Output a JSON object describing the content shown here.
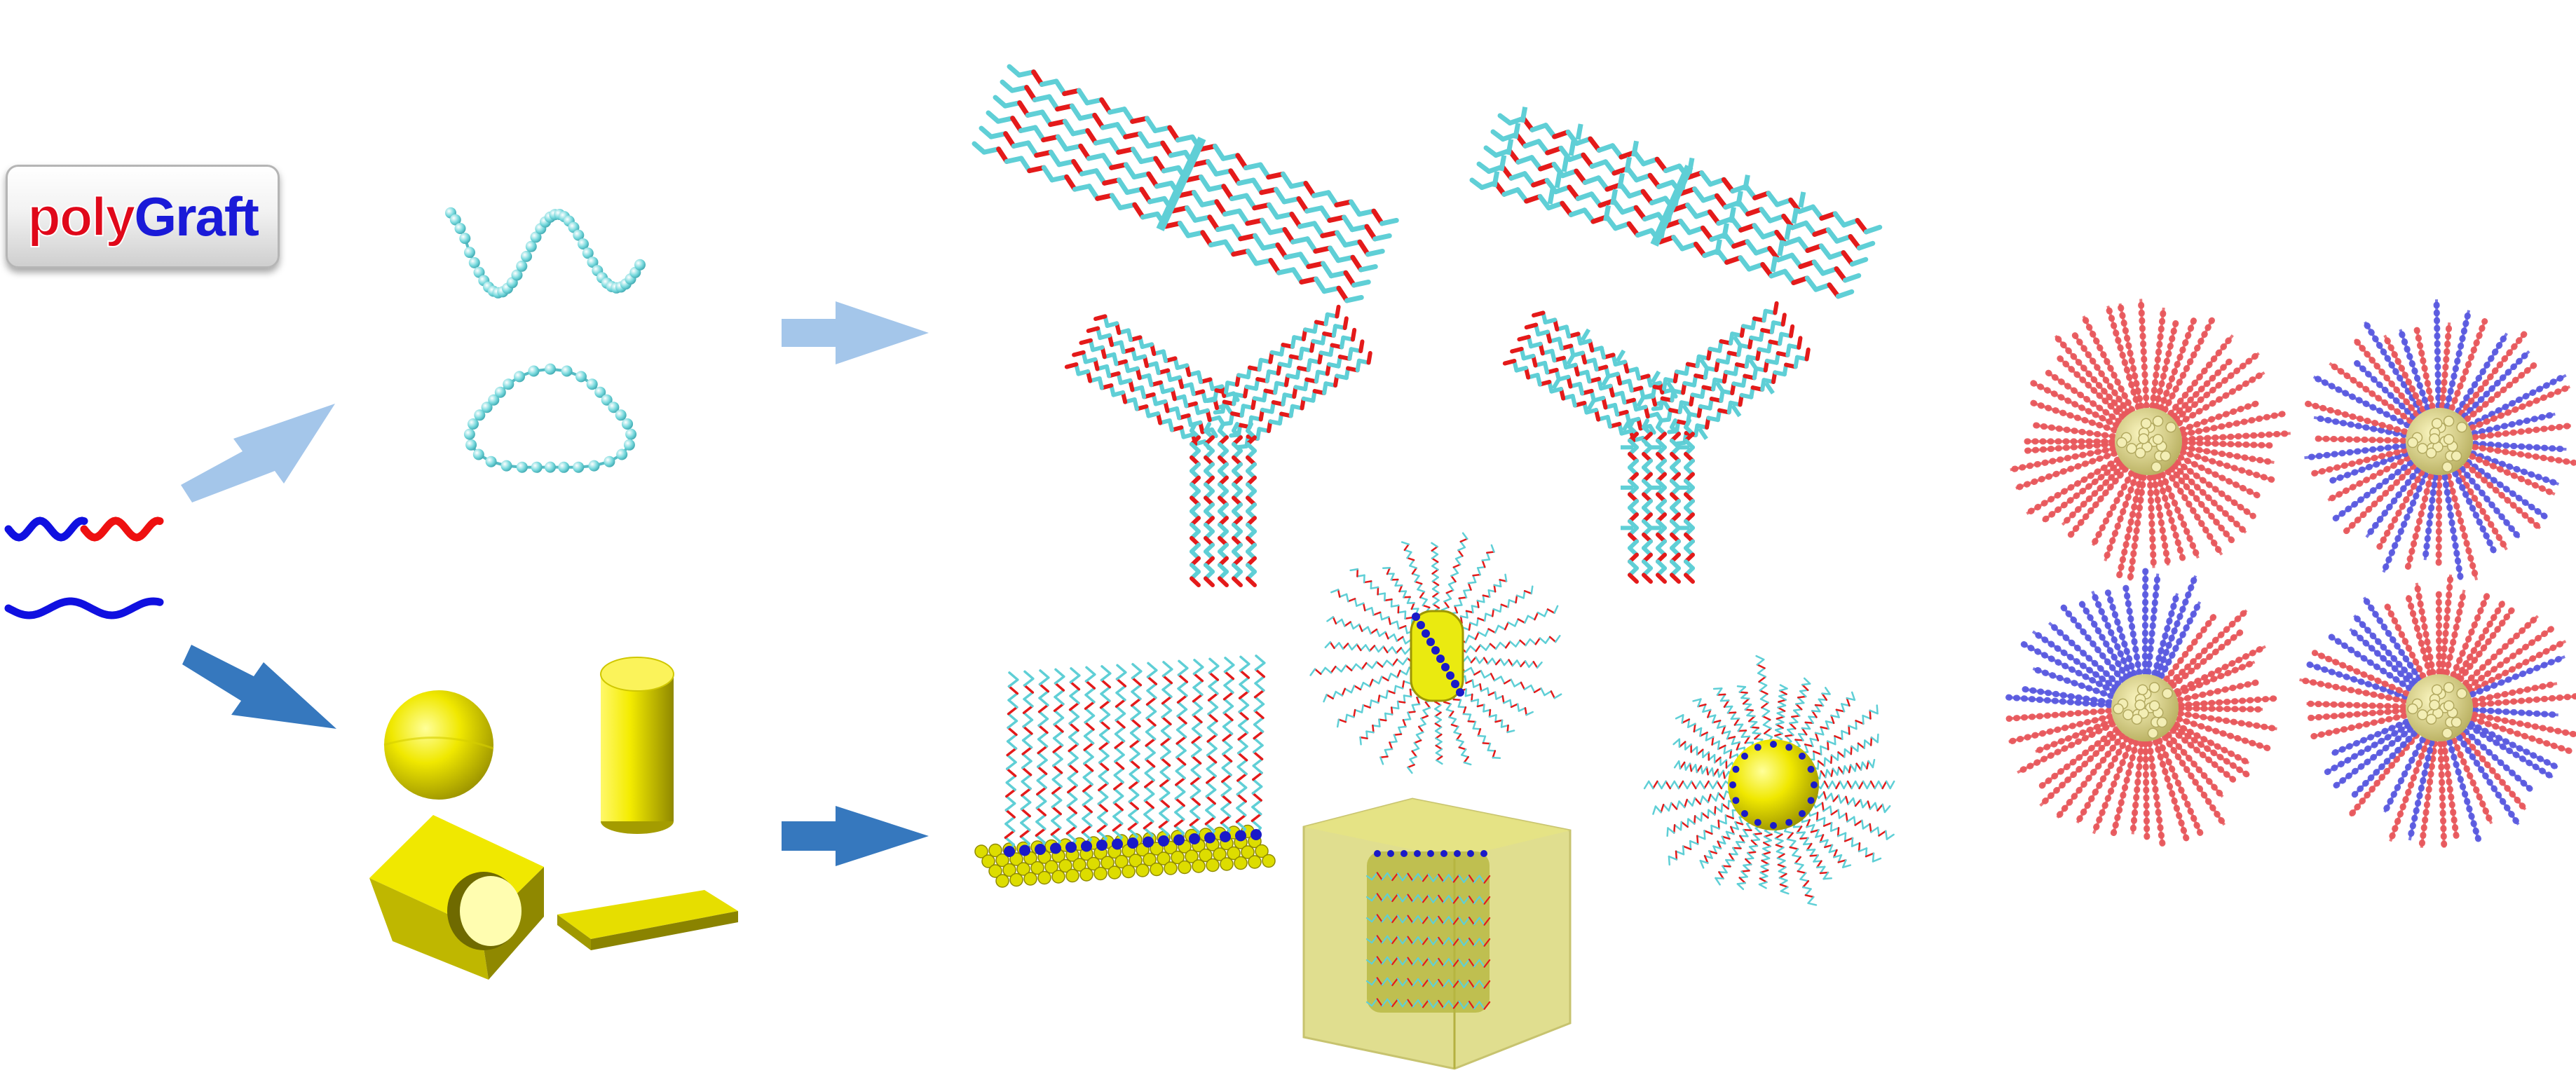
{
  "logo": {
    "part1": "poly",
    "part2": "Graft",
    "colors": {
      "poly": "#e0081a",
      "graft": "#1a1ad8"
    }
  },
  "colors": {
    "arrow_light": "#a4c6ea",
    "arrow_dark": "#3678be",
    "carbon": "#5fcfd6",
    "oxygen": "#e41a1a",
    "block_red": "#e8585c",
    "block_blue": "#5a5ae0",
    "nanoparticle_gold": "#e9e070",
    "solid_yellow": "#f2ec00",
    "surface_atom": "#dddd00",
    "anchor_blue": "#1a1ac8"
  },
  "panels": {
    "input_chains": {
      "icons": [
        "diblock-chain-icon",
        "homopolymer-chain-icon"
      ]
    },
    "single_chains": {
      "icons": [
        "linear-chain-icon",
        "ring-chain-icon"
      ]
    },
    "crystal_assemblies": {
      "icons": [
        "parallel-bundle-icon",
        "crosslinked-bundle-icon",
        "three-arm-star-icon",
        "three-arm-star-branched-icon"
      ]
    },
    "substrates": {
      "icons": [
        "sphere-icon",
        "cylinder-icon",
        "holed-block-icon",
        "slab-icon"
      ]
    },
    "grafted_systems": {
      "icons": [
        "grafted-surface-icon",
        "grafted-cylinder-icon",
        "grafted-sphere-icon",
        "confined-cube-icon"
      ]
    },
    "grafted_nanoparticles": {
      "icons": [
        "np-homopolymer-icon",
        "np-mixed-icon",
        "np-janus-icon",
        "np-random-mixed-icon"
      ]
    }
  }
}
